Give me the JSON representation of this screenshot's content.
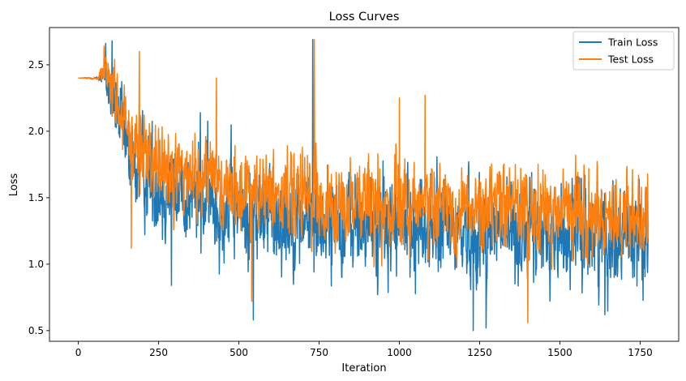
{
  "chart_data": {
    "type": "line",
    "title": "Loss Curves",
    "xlabel": "Iteration",
    "ylabel": "Loss",
    "xlim": [
      -90,
      1870
    ],
    "ylim": [
      0.42,
      2.78
    ],
    "xticks": [
      0,
      250,
      500,
      750,
      1000,
      1250,
      1500,
      1750
    ],
    "yticks": [
      0.5,
      1.0,
      1.5,
      2.0,
      2.5
    ],
    "xtick_labels": [
      "0",
      "250",
      "500",
      "750",
      "1000",
      "1250",
      "1500",
      "1750"
    ],
    "ytick_labels": [
      "0.5",
      "1.0",
      "1.5",
      "2.0",
      "2.5"
    ],
    "grid": false,
    "legend_position": "top-right",
    "n_points": 1776,
    "series": [
      {
        "name": "Train Loss",
        "color": "#1f77b4",
        "start_value": 2.4,
        "x_knots": [
          0,
          60,
          80,
          100,
          130,
          160,
          250,
          400,
          550,
          750,
          1000,
          1250,
          1500,
          1775
        ],
        "mean_knots": [
          2.4,
          2.4,
          2.42,
          2.3,
          2.05,
          1.78,
          1.6,
          1.47,
          1.38,
          1.32,
          1.28,
          1.25,
          1.23,
          1.22
        ],
        "spread_knots": [
          0.0,
          0.01,
          0.1,
          0.25,
          0.3,
          0.38,
          0.38,
          0.38,
          0.38,
          0.38,
          0.38,
          0.38,
          0.37,
          0.37
        ],
        "peaks": [
          [
            85,
            2.66
          ],
          [
            105,
            2.68
          ],
          [
            380,
            2.14
          ],
          [
            730,
            2.69
          ]
        ],
        "troughs": [
          [
            290,
            0.84
          ],
          [
            545,
            0.58
          ],
          [
            1230,
            0.5
          ],
          [
            1270,
            0.52
          ],
          [
            1640,
            0.62
          ]
        ]
      },
      {
        "name": "Test Loss",
        "color": "#ff7f0e",
        "start_value": 2.4,
        "x_knots": [
          0,
          60,
          80,
          100,
          130,
          160,
          250,
          400,
          550,
          750,
          1000,
          1250,
          1500,
          1775
        ],
        "mean_knots": [
          2.4,
          2.4,
          2.45,
          2.35,
          2.12,
          1.9,
          1.75,
          1.62,
          1.53,
          1.47,
          1.44,
          1.42,
          1.4,
          1.38
        ],
        "spread_knots": [
          0.0,
          0.01,
          0.1,
          0.22,
          0.28,
          0.32,
          0.32,
          0.32,
          0.32,
          0.32,
          0.32,
          0.32,
          0.32,
          0.32
        ],
        "peaks": [
          [
            80,
            2.64
          ],
          [
            190,
            2.6
          ],
          [
            430,
            2.4
          ],
          [
            735,
            2.69
          ],
          [
            1000,
            2.25
          ],
          [
            1080,
            2.27
          ]
        ],
        "troughs": [
          [
            165,
            1.12
          ],
          [
            540,
            0.72
          ],
          [
            1400,
            0.56
          ]
        ]
      }
    ]
  }
}
